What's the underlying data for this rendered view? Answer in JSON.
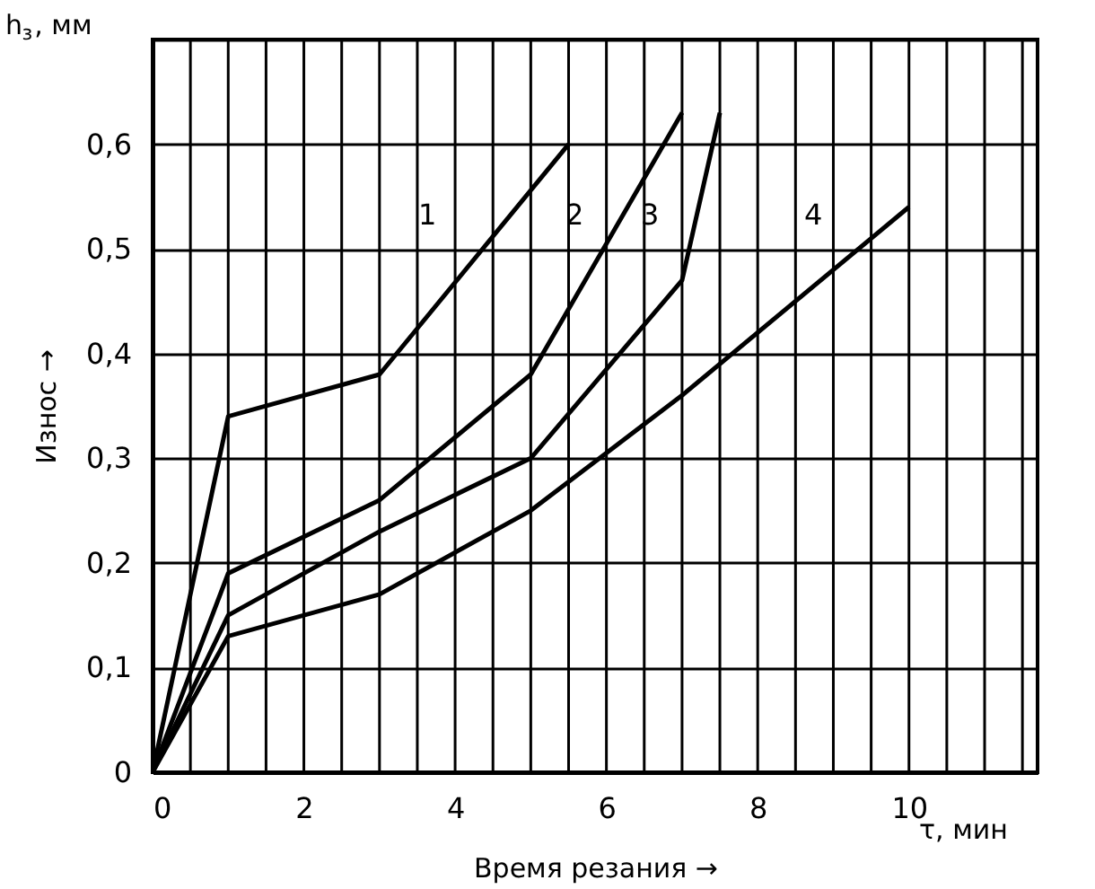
{
  "chart_data": {
    "type": "line",
    "xlabel": "Время резания →",
    "ylabel": "Износ →",
    "xlim": [
      0,
      11.7
    ],
    "ylim": [
      0,
      0.7
    ],
    "xticks": [
      0,
      {
        "value": 0.5,
        "label": null
      },
      {
        "value": 1,
        "label": null
      },
      {
        "value": 1.5,
        "label": null
      },
      2,
      {
        "value": 2.5,
        "label": null
      },
      {
        "value": 3,
        "label": null
      },
      {
        "value": 3.5,
        "label": null
      },
      4,
      {
        "value": 4.5,
        "label": null
      },
      {
        "value": 5,
        "label": null
      },
      {
        "value": 5.5,
        "label": null
      },
      6,
      {
        "value": 6.5,
        "label": null
      },
      {
        "value": 7,
        "label": null
      },
      {
        "value": 7.5,
        "label": null
      },
      8,
      {
        "value": 8.5,
        "label": null
      },
      {
        "value": 9,
        "label": null
      },
      {
        "value": 9.5,
        "label": null
      },
      10,
      {
        "value": 10.5,
        "label": null
      },
      {
        "value": 11,
        "label": null
      },
      {
        "value": 11.5,
        "label": null
      }
    ],
    "yticks": [
      0,
      {
        "value": 0.1,
        "label": "0,1"
      },
      {
        "value": 0.2,
        "label": "0,2"
      },
      {
        "value": 0.3,
        "label": "0,3"
      },
      {
        "value": 0.4,
        "label": "0,4"
      },
      {
        "value": 0.5,
        "label": "0,5"
      },
      {
        "value": 0.6,
        "label": "0,6"
      },
      {
        "value": 0.7,
        "label": null
      }
    ],
    "grid": true,
    "legend": false,
    "marker": "none",
    "line_style": "solid",
    "series": [
      {
        "color": "#000000",
        "x": [
          0,
          1,
          3,
          5.5
        ],
        "values": [
          0,
          0.34,
          0.38,
          0.6
        ]
      },
      {
        "color": "#000000",
        "x": [
          0,
          1,
          3,
          5,
          7
        ],
        "values": [
          0,
          0.19,
          0.26,
          0.38,
          0.63
        ]
      },
      {
        "color": "#000000",
        "x": [
          0,
          1,
          3,
          5,
          7,
          7.5
        ],
        "values": [
          0,
          0.15,
          0.23,
          0.3,
          0.47,
          0.63
        ]
      },
      {
        "color": "#000000",
        "x": [
          0,
          1,
          3,
          5,
          7,
          10
        ],
        "values": [
          0,
          0.13,
          0.17,
          0.25,
          0.36,
          0.54
        ]
      }
    ],
    "annotations": [
      "1",
      "2",
      "3",
      "4",
      "h$_{з}$, мм",
      "τ, мин"
    ]
  }
}
